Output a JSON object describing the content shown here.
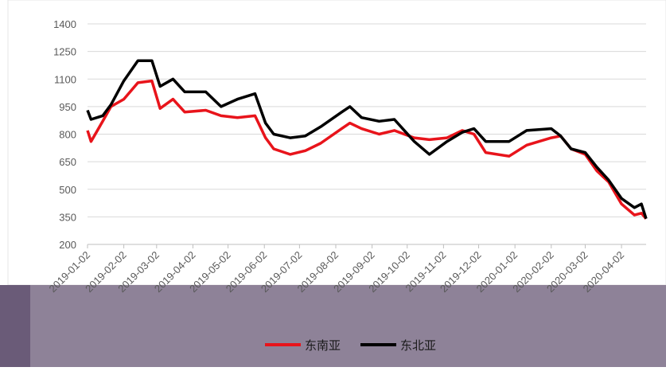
{
  "chart_data": {
    "type": "line",
    "x": [
      "2019-01-02",
      "2019-01-05",
      "2019-01-15",
      "2019-01-22",
      "2019-02-02",
      "2019-02-14",
      "2019-02-26",
      "2019-03-05",
      "2019-03-16",
      "2019-03-26",
      "2019-04-13",
      "2019-04-26",
      "2019-05-10",
      "2019-05-25",
      "2019-06-03",
      "2019-06-10",
      "2019-06-24",
      "2019-07-07",
      "2019-07-20",
      "2019-08-07",
      "2019-08-14",
      "2019-08-24",
      "2019-09-08",
      "2019-09-21",
      "2019-10-08",
      "2019-10-21",
      "2019-11-05",
      "2019-11-18",
      "2019-11-28",
      "2019-12-08",
      "2019-12-28",
      "2020-01-12",
      "2020-02-02",
      "2020-02-10",
      "2020-02-19",
      "2020-03-02",
      "2020-03-12",
      "2020-03-22",
      "2020-04-02",
      "2020-04-13",
      "2020-04-19",
      "2020-04-23"
    ],
    "series": [
      {
        "name": "东南亚",
        "color": "#e8141b",
        "values": [
          820,
          760,
          870,
          950,
          990,
          1080,
          1090,
          940,
          990,
          920,
          930,
          900,
          890,
          900,
          780,
          720,
          690,
          710,
          750,
          830,
          860,
          830,
          800,
          820,
          780,
          770,
          780,
          820,
          800,
          700,
          680,
          740,
          780,
          790,
          720,
          690,
          600,
          540,
          420,
          360,
          370,
          340
        ]
      },
      {
        "name": "东北亚",
        "color": "#000000",
        "values": [
          930,
          880,
          900,
          960,
          1090,
          1200,
          1200,
          1060,
          1100,
          1030,
          1030,
          950,
          990,
          1020,
          860,
          800,
          780,
          790,
          840,
          920,
          950,
          890,
          870,
          880,
          760,
          690,
          760,
          810,
          830,
          760,
          760,
          820,
          830,
          790,
          720,
          700,
          620,
          550,
          450,
          400,
          420,
          340
        ]
      }
    ],
    "xlim": [
      "2019-01-02",
      "2020-04-23"
    ],
    "xticks": [
      "2019-01-02",
      "2019-02-02",
      "2019-03-02",
      "2019-04-02",
      "2019-05-02",
      "2019-06-02",
      "2019-07-02",
      "2019-08-02",
      "2019-09-02",
      "2019-10-02",
      "2019-11-02",
      "2019-12-02",
      "2020-01-02",
      "2020-02-02",
      "2020-03-02",
      "2020-04-02"
    ],
    "ylim": [
      200,
      1400
    ],
    "yticks": [
      200,
      350,
      500,
      650,
      800,
      950,
      1100,
      1250,
      1400
    ],
    "grid": true,
    "legend": "bottom"
  }
}
